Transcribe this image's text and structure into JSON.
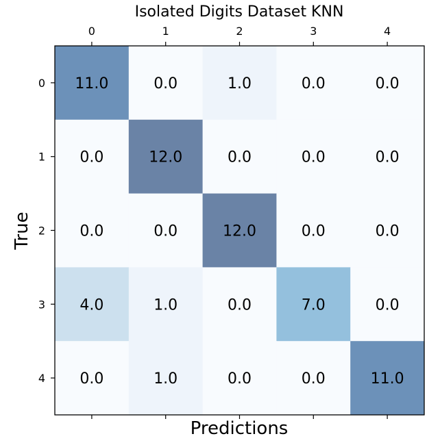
{
  "chart_data": {
    "type": "heatmap",
    "title": "Isolated Digits Dataset KNN",
    "xlabel": "Predictions",
    "ylabel": "True",
    "x_categories": [
      "0",
      "1",
      "2",
      "3",
      "4"
    ],
    "y_categories": [
      "0",
      "1",
      "2",
      "3",
      "4"
    ],
    "values": [
      [
        11.0,
        0.0,
        1.0,
        0.0,
        0.0
      ],
      [
        0.0,
        12.0,
        0.0,
        0.0,
        0.0
      ],
      [
        0.0,
        0.0,
        12.0,
        0.0,
        0.0
      ],
      [
        4.0,
        1.0,
        0.0,
        7.0,
        0.0
      ],
      [
        0.0,
        1.0,
        0.0,
        0.0,
        11.0
      ]
    ],
    "cell_labels": [
      [
        "11.0",
        "0.0",
        "1.0",
        "0.0",
        "0.0"
      ],
      [
        "0.0",
        "12.0",
        "0.0",
        "0.0",
        "0.0"
      ],
      [
        "0.0",
        "0.0",
        "12.0",
        "0.0",
        "0.0"
      ],
      [
        "4.0",
        "1.0",
        "0.0",
        "7.0",
        "0.0"
      ],
      [
        "0.0",
        "1.0",
        "0.0",
        "0.0",
        "11.0"
      ]
    ],
    "colormap": "Blues",
    "value_range": [
      0,
      12
    ],
    "x_tick_position": "top",
    "grid": false,
    "legend": "none"
  }
}
